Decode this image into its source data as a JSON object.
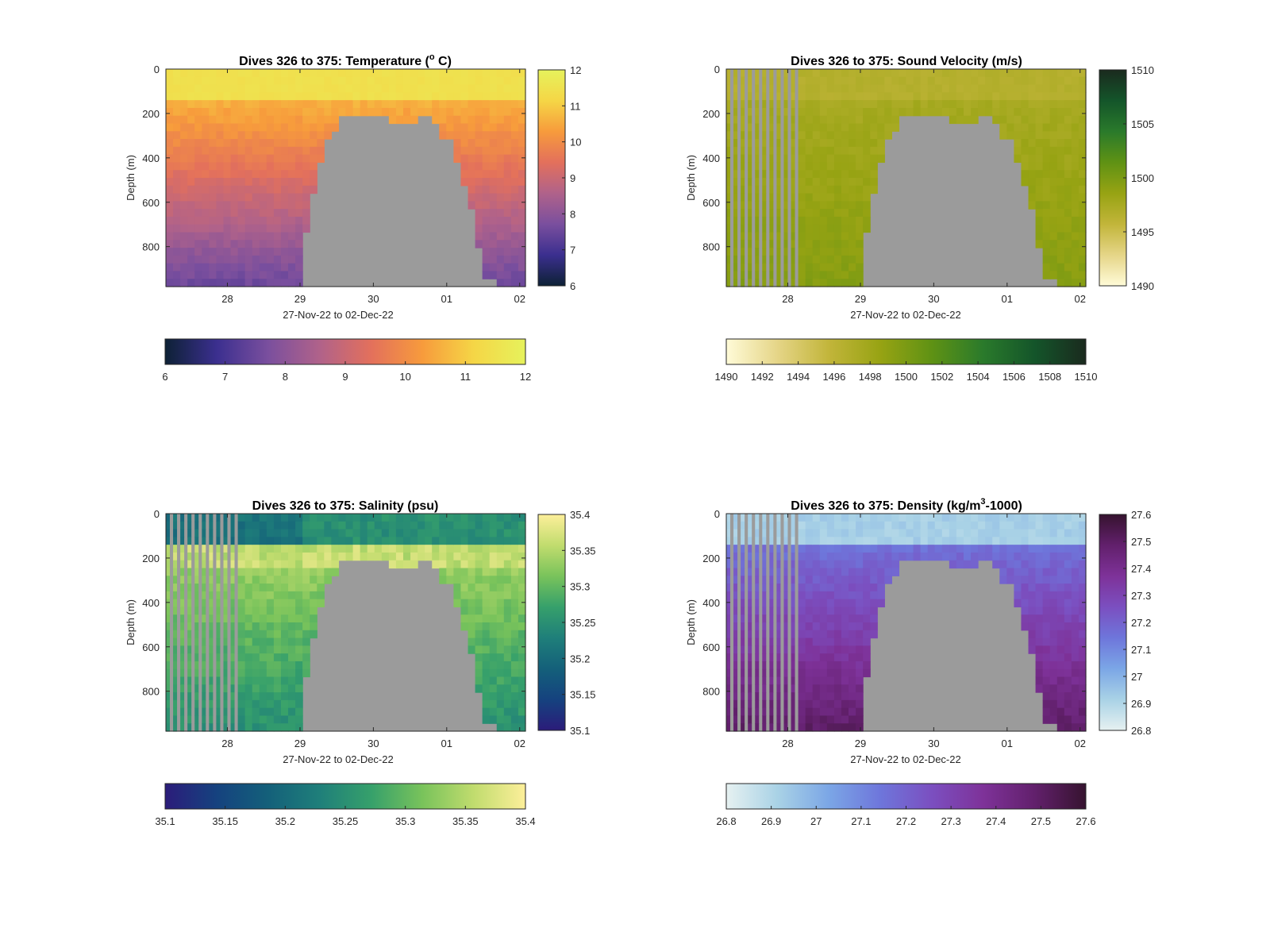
{
  "figure": {
    "x_axis_label": "27-Nov-22 to 02-Dec-22",
    "y_axis_label": "Depth (m)",
    "depth_ticks": [
      "0",
      "200",
      "400",
      "600",
      "800"
    ],
    "date_ticks": [
      "28",
      "29",
      "30",
      "01",
      "02"
    ]
  },
  "chart_data": [
    {
      "type": "heatmap",
      "title_main": "Dives 326 to 375: Temperature (",
      "title_sup": "o",
      "title_tail": " C)",
      "xlabel": "27-Nov-22 to 02-Dec-22",
      "ylabel": "Depth (m)",
      "x_range": [
        "2022-11-27",
        "2022-12-02"
      ],
      "y_range_m": [
        0,
        980
      ],
      "color_range": [
        6,
        12
      ],
      "colormap": "thermal",
      "colormap_stops": [
        "#0d2135",
        "#3b2f8f",
        "#7a4f9e",
        "#b0628a",
        "#e3705c",
        "#f79b3c",
        "#f5d646",
        "#e6f25c"
      ],
      "colorbar_ticks_vertical": [
        "12",
        "11",
        "10",
        "9",
        "8",
        "7",
        "6"
      ],
      "colorbar_ticks_horizontal": [
        "6",
        "7",
        "8",
        "9",
        "10",
        "11",
        "12"
      ],
      "surface_value": 11.5,
      "mixed_layer_depth_m": 150,
      "deep_value": 7.3,
      "description_values": {
        "surface": 11.5,
        "200m": 10.5,
        "500m": 9.5,
        "900m": 7.5
      }
    },
    {
      "type": "heatmap",
      "title_main": "Dives 326 to 375: Sound Velocity (m/s)",
      "xlabel": "27-Nov-22 to 02-Dec-22",
      "ylabel": "Depth (m)",
      "x_range": [
        "2022-11-27",
        "2022-12-02"
      ],
      "y_range_m": [
        0,
        980
      ],
      "color_range": [
        1490,
        1510
      ],
      "colormap": "speed",
      "colormap_stops": [
        "#fffbd8",
        "#e5d587",
        "#c2b53a",
        "#97a313",
        "#5f9214",
        "#2a7a2b",
        "#14552a",
        "#1a2a1e"
      ],
      "colorbar_ticks_vertical": [
        "1510",
        "1505",
        "1500",
        "1495",
        "1490"
      ],
      "colorbar_ticks_horizontal": [
        "1490",
        "1492",
        "1494",
        "1496",
        "1498",
        "1500",
        "1502",
        "1504",
        "1506",
        "1508",
        "1510"
      ],
      "surface_value": 1496.5,
      "mixed_layer_depth_m": 150,
      "deep_value": 1499
    },
    {
      "type": "heatmap",
      "title_main": "Dives 326 to 375: Salinity (psu)",
      "xlabel": "27-Nov-22 to 02-Dec-22",
      "ylabel": "Depth (m)",
      "x_range": [
        "2022-11-27",
        "2022-12-02"
      ],
      "y_range_m": [
        0,
        980
      ],
      "color_range": [
        35.1,
        35.4
      ],
      "colormap": "haline",
      "colormap_stops": [
        "#2b1c7a",
        "#15427f",
        "#14607a",
        "#1f7f7a",
        "#36a06b",
        "#79c35b",
        "#c1dc6e",
        "#fdef9a"
      ],
      "colorbar_ticks_vertical": [
        "35.4",
        "35.35",
        "35.3",
        "35.25",
        "35.2",
        "35.15",
        "35.1"
      ],
      "colorbar_ticks_horizontal": [
        "35.1",
        "35.15",
        "35.2",
        "35.25",
        "35.3",
        "35.35",
        "35.4"
      ],
      "surface_value": 35.22,
      "mixed_layer_depth_m": 150,
      "deep_value": 35.26
    },
    {
      "type": "heatmap",
      "title_main": "Dives 326 to 375: Density (kg/m",
      "title_sup": "3",
      "title_tail": "-1000)",
      "xlabel": "27-Nov-22 to 02-Dec-22",
      "ylabel": "Depth (m)",
      "x_range": [
        "2022-11-27",
        "2022-12-02"
      ],
      "y_range_m": [
        0,
        980
      ],
      "color_range": [
        26.8,
        27.6
      ],
      "colormap": "dense",
      "colormap_stops": [
        "#e6f1f1",
        "#a9d2e6",
        "#7ba6e6",
        "#6e76db",
        "#7b4fc0",
        "#7e3299",
        "#62206c",
        "#36132f"
      ],
      "colorbar_ticks_vertical": [
        "27.6",
        "27.5",
        "27.4",
        "27.3",
        "27.2",
        "27.1",
        "27",
        "26.9",
        "26.8"
      ],
      "colorbar_ticks_horizontal": [
        "26.8",
        "26.9",
        "27",
        "27.1",
        "27.2",
        "27.3",
        "27.4",
        "27.5",
        "27.6"
      ],
      "surface_value": 26.92,
      "mixed_layer_depth_m": 150,
      "deep_value": 27.45
    }
  ],
  "colors": {
    "seafloor": "#9b9b9b",
    "axis": "#262626"
  }
}
